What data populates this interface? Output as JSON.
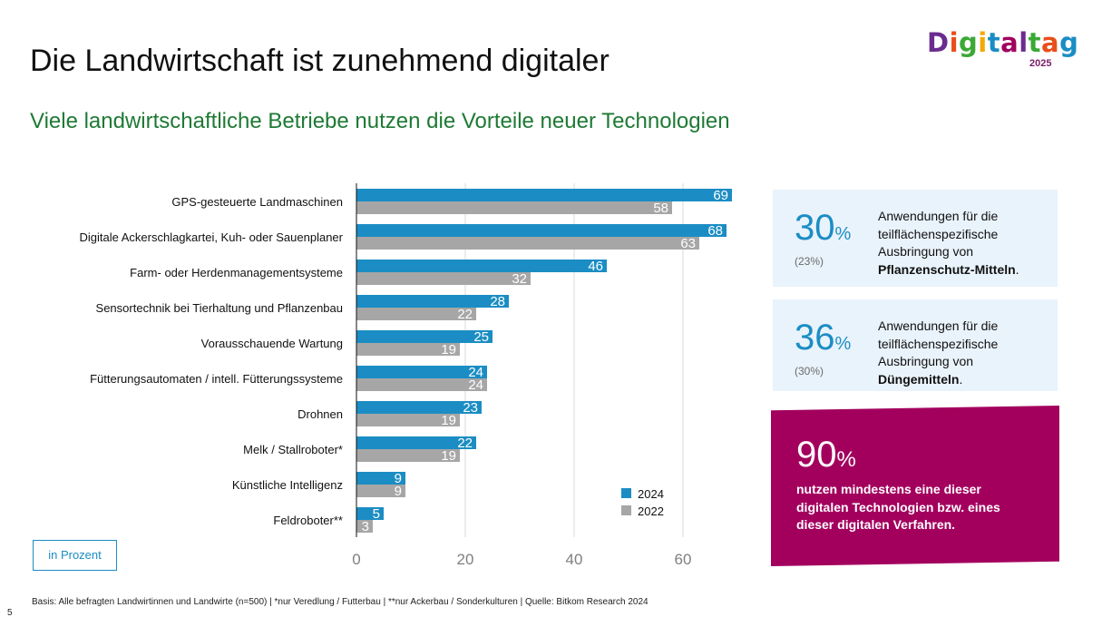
{
  "title": "Die Landwirtschaft ist zunehmend digitaler",
  "subtitle": "Viele landwirtschaftliche Betriebe nutzen die Vorteile neuer Technologien",
  "logo": {
    "word": "Digitaltag",
    "year": "2025"
  },
  "colors": {
    "series_2024": "#1b8dc4",
    "series_2022": "#a6a6a6",
    "accent_green": "#1e7a34",
    "magenta": "#a3005e",
    "card_bg": "#e9f3fb"
  },
  "chart_data": {
    "type": "bar",
    "orientation": "horizontal",
    "categories": [
      "GPS-gesteuerte Landmaschinen",
      "Digitale Ackerschlagkartei, Kuh- oder Sauenplaner",
      "Farm- oder Herdenmanagementsysteme",
      "Sensortechnik bei Tierhaltung und Pflanzenbau",
      "Vorausschauende Wartung",
      "Fütterungsautomaten / intell. Fütterungssysteme",
      "Drohnen",
      "Melk / Stallroboter*",
      "Künstliche Intelligenz",
      "Feldroboter**"
    ],
    "series": [
      {
        "name": "2024",
        "values": [
          69,
          68,
          46,
          28,
          25,
          24,
          23,
          22,
          9,
          5
        ]
      },
      {
        "name": "2022",
        "values": [
          58,
          63,
          32,
          22,
          19,
          24,
          19,
          19,
          9,
          3
        ]
      }
    ],
    "xlim": [
      0,
      70
    ],
    "xticks": [
      0,
      20,
      40,
      60
    ],
    "grid": true,
    "legend_position": "bottom-right",
    "data_labels": true
  },
  "cards": [
    {
      "value": "30",
      "unit": "%",
      "previous": "(23%)",
      "desc_pre": "Anwendungen für die teilflächenspezifische Ausbringung von ",
      "desc_bold": "Pflanzenschutz-Mitteln",
      "desc_post": "."
    },
    {
      "value": "36",
      "unit": "%",
      "previous": "(30%)",
      "desc_pre": "Anwendungen für die teilflächenspezifische Ausbringung von ",
      "desc_bold": "Düngemitteln",
      "desc_post": "."
    }
  ],
  "highlight": {
    "value": "90",
    "unit": "%",
    "text": "nutzen mindestens eine dieser digitalen Technologien bzw. eines dieser digitalen Verfahren."
  },
  "unit_label": "in Prozent",
  "footnote": "Basis: Alle befragten Landwirtinnen und Landwirte (n=500) | *nur Veredlung / Futterbau | **nur Ackerbau / Sonderkulturen | Quelle: Bitkom Research 2024",
  "page_number": "5"
}
